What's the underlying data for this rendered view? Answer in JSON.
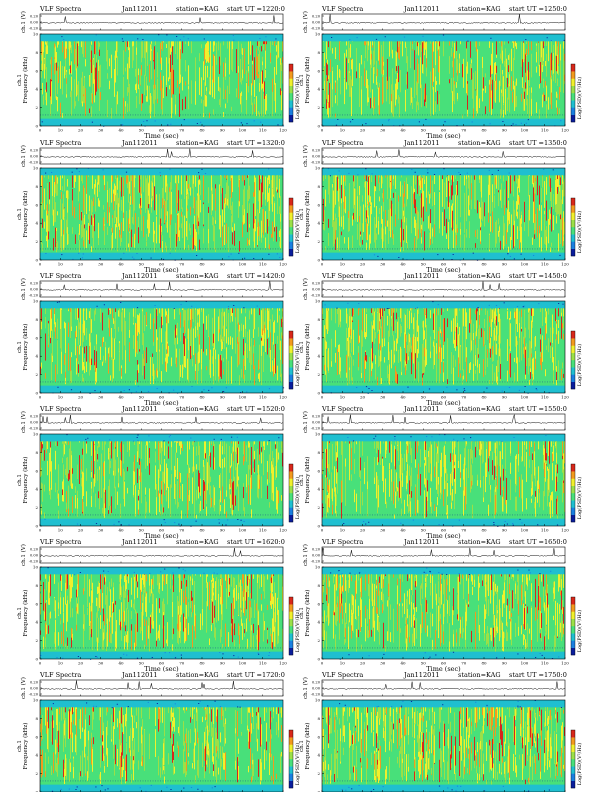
{
  "sheet": {
    "title": "VLF Spectra"
  },
  "common": {
    "title": "VLF Spectra",
    "date": "Jan112011",
    "station": "station=KAG",
    "ut_prefix": "start UT =",
    "signal_ylabel": "ch.1 (V)",
    "spec_ylabel_top": "ch.1",
    "spec_ylabel": "Frequency (kHz)",
    "xlabel": "Time (sec)",
    "colorbar_label": "Log(PSD)(V²/Hz)",
    "signal_ticks": [
      "0.20",
      "0.00",
      "-0.20"
    ],
    "time_ticks": [
      "0",
      "10",
      "20",
      "30",
      "40",
      "50",
      "60",
      "70",
      "80",
      "90",
      "100",
      "110",
      "120"
    ],
    "freq_ticks": [
      "0",
      "2",
      "4",
      "6",
      "8",
      "10"
    ],
    "colors": {
      "bg": "#1fbfd0",
      "levels": [
        "#0a1d9c",
        "#1a7fe0",
        "#1fbfd0",
        "#48e07a",
        "#9be048",
        "#f1f02c",
        "#f29a1e",
        "#d8271a"
      ]
    }
  },
  "chart_data": [
    {
      "type": "heatmap",
      "start_ut": "1220:0",
      "xlim": [
        0,
        120
      ],
      "ylim": [
        0,
        10
      ],
      "xlabel": "Time (sec)",
      "ylabel": "Frequency (kHz)"
    },
    {
      "type": "heatmap",
      "start_ut": "1250:0",
      "xlim": [
        0,
        120
      ],
      "ylim": [
        0,
        10
      ],
      "xlabel": "Time (sec)",
      "ylabel": "Frequency (kHz)"
    },
    {
      "type": "heatmap",
      "start_ut": "1320:0",
      "xlim": [
        0,
        120
      ],
      "ylim": [
        0,
        10
      ],
      "xlabel": "Time (sec)",
      "ylabel": "Frequency (kHz)"
    },
    {
      "type": "heatmap",
      "start_ut": "1350:0",
      "xlim": [
        0,
        120
      ],
      "ylim": [
        0,
        10
      ],
      "xlabel": "Time (sec)",
      "ylabel": "Frequency (kHz)"
    },
    {
      "type": "heatmap",
      "start_ut": "1420:0",
      "xlim": [
        0,
        120
      ],
      "ylim": [
        0,
        10
      ],
      "xlabel": "Time (sec)",
      "ylabel": "Frequency (kHz)"
    },
    {
      "type": "heatmap",
      "start_ut": "1450:0",
      "xlim": [
        0,
        120
      ],
      "ylim": [
        0,
        10
      ],
      "xlabel": "Time (sec)",
      "ylabel": "Frequency (kHz)"
    },
    {
      "type": "heatmap",
      "start_ut": "1520:0",
      "xlim": [
        0,
        120
      ],
      "ylim": [
        0,
        10
      ],
      "xlabel": "Time (sec)",
      "ylabel": "Frequency (kHz)"
    },
    {
      "type": "heatmap",
      "start_ut": "1550:0",
      "xlim": [
        0,
        120
      ],
      "ylim": [
        0,
        10
      ],
      "xlabel": "Time (sec)",
      "ylabel": "Frequency (kHz)"
    },
    {
      "type": "heatmap",
      "start_ut": "1620:0",
      "xlim": [
        0,
        120
      ],
      "ylim": [
        0,
        10
      ],
      "xlabel": "Time (sec)",
      "ylabel": "Frequency (kHz)"
    },
    {
      "type": "heatmap",
      "start_ut": "1650:0",
      "xlim": [
        0,
        120
      ],
      "ylim": [
        0,
        10
      ],
      "xlabel": "Time (sec)",
      "ylabel": "Frequency (kHz)"
    },
    {
      "type": "heatmap",
      "start_ut": "1720:0",
      "xlim": [
        0,
        120
      ],
      "ylim": [
        0,
        10
      ],
      "xlabel": "Time (sec)",
      "ylabel": "Frequency (kHz)"
    },
    {
      "type": "heatmap",
      "start_ut": "1750:0",
      "xlim": [
        0,
        120
      ],
      "ylim": [
        0,
        10
      ],
      "xlabel": "Time (sec)",
      "ylabel": "Frequency (kHz)"
    }
  ]
}
